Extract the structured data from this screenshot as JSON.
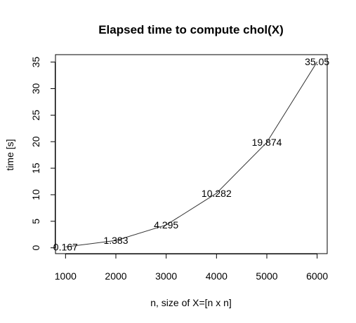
{
  "chart_data": {
    "type": "line",
    "title": "Elapsed time to compute chol(X)",
    "xlabel": "n, size of X=[n x n]",
    "ylabel": "time [s]",
    "x": [
      1000,
      2000,
      3000,
      4000,
      5000,
      6000
    ],
    "series": [
      {
        "values": [
          0.167,
          1.383,
          4.295,
          10.282,
          19.874,
          35.05
        ]
      }
    ],
    "data_labels": [
      "0.167",
      "1.383",
      "4.295",
      "10.282",
      "19.874",
      "35.05"
    ],
    "xlim": [
      800,
      6200
    ],
    "ylim": [
      -1.1,
      36.4
    ],
    "xticks": [
      1000,
      2000,
      3000,
      4000,
      5000,
      6000
    ],
    "yticks": [
      0,
      5,
      10,
      15,
      20,
      25,
      30,
      35
    ],
    "grid": false,
    "legend": "none",
    "line_color": "#333333"
  }
}
